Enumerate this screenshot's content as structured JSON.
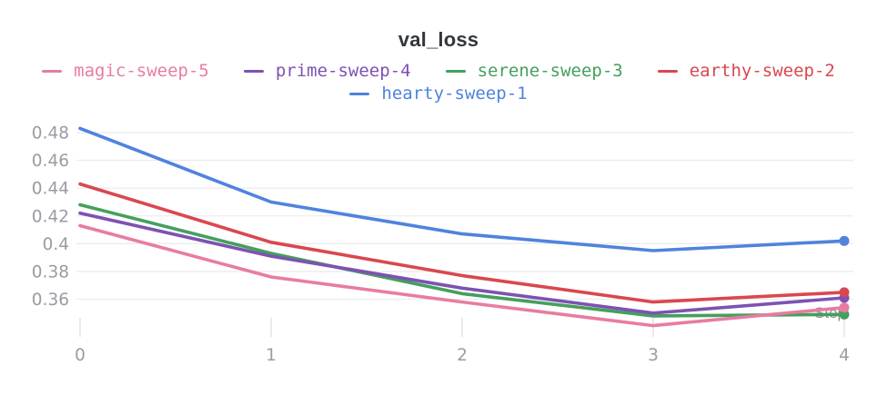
{
  "title": "val_loss",
  "axis": {
    "x_title": "Step",
    "x_ticks": [
      "0",
      "1",
      "2",
      "3",
      "4"
    ],
    "y_ticks": [
      "0.48",
      "0.46",
      "0.44",
      "0.42",
      "0.4",
      "0.38",
      "0.36"
    ]
  },
  "colors": {
    "title_text": "#33373d",
    "axis_text": "#9b9ba3",
    "step_label_text": "#8d8d94",
    "gridline": "#ececef",
    "tick": "#e4e4e9",
    "background": "#ffffff"
  },
  "chart_data": {
    "type": "line",
    "title": "val_loss",
    "xlabel": "Step",
    "ylabel": "",
    "x": [
      0,
      1,
      2,
      3,
      4
    ],
    "xlim": [
      0,
      4
    ],
    "ylim": [
      0.335,
      0.49
    ],
    "grid": true,
    "legend_position": "top",
    "y_gridlines": [
      0.48,
      0.46,
      0.44,
      0.42,
      0.4,
      0.38,
      0.36
    ],
    "series": [
      {
        "name": "magic-sweep-5",
        "color": "#e87ca1",
        "values": [
          0.413,
          0.376,
          0.358,
          0.341,
          0.354
        ]
      },
      {
        "name": "prime-sweep-4",
        "color": "#7d52b3",
        "values": [
          0.422,
          0.391,
          0.368,
          0.35,
          0.361
        ]
      },
      {
        "name": "serene-sweep-3",
        "color": "#44a05c",
        "values": [
          0.428,
          0.393,
          0.364,
          0.348,
          0.349
        ]
      },
      {
        "name": "earthy-sweep-2",
        "color": "#d9484e",
        "values": [
          0.443,
          0.401,
          0.377,
          0.358,
          0.365
        ]
      },
      {
        "name": "hearty-sweep-1",
        "color": "#4f83de",
        "values": [
          0.483,
          0.43,
          0.407,
          0.395,
          0.402
        ]
      }
    ]
  }
}
